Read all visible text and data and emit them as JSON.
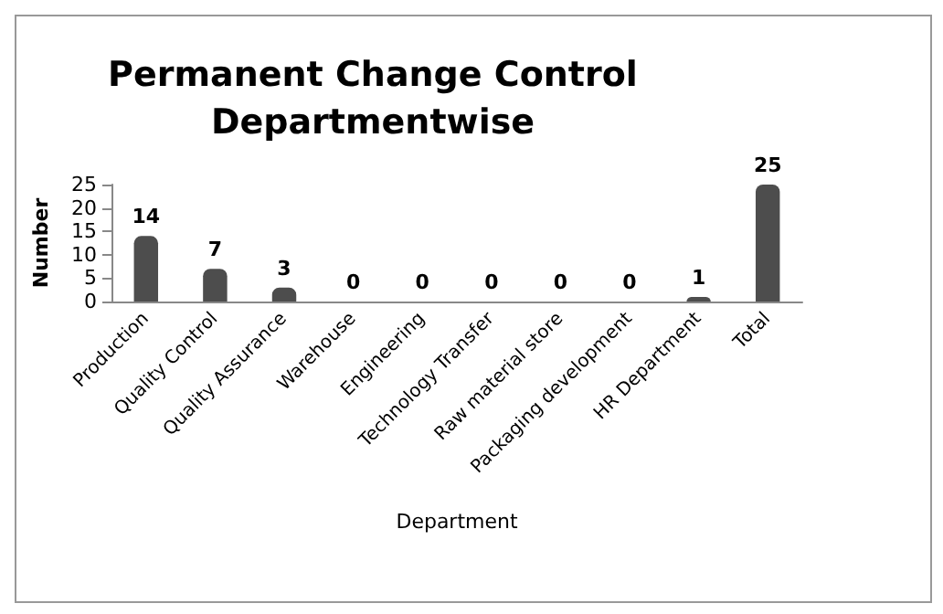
{
  "chart_data": {
    "type": "bar",
    "title": "Permanent Change Control\nDepartmentwise",
    "xlabel": "Department",
    "ylabel": "Number",
    "categories": [
      "Production",
      "Quality Control",
      "Quality Assurance",
      "Warehouse",
      "Engineering",
      "Technology Transfer",
      "Raw material store",
      "Packaging development",
      "HR Department",
      "Total"
    ],
    "values": [
      14,
      7,
      3,
      0,
      0,
      0,
      0,
      0,
      1,
      25
    ],
    "color": "#4d4d4d",
    "ylim": [
      0,
      25
    ],
    "yticks": [
      0,
      5,
      10,
      15,
      20,
      25
    ],
    "data_labels": true,
    "grid": false
  }
}
